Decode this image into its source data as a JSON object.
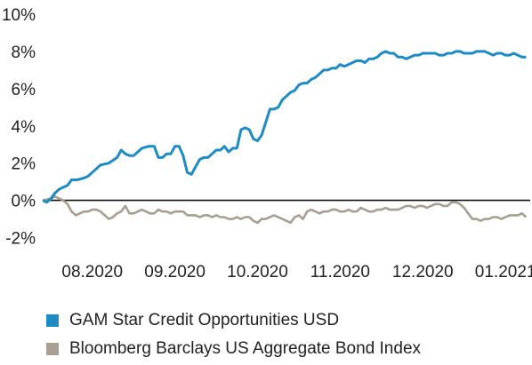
{
  "chart_data": {
    "type": "line",
    "title": "",
    "xlabel": "",
    "ylabel": "",
    "ylim": [
      -2.5,
      10
    ],
    "y_ticks": [
      -2,
      0,
      2,
      4,
      6,
      8,
      10
    ],
    "y_tick_labels": [
      "-2%",
      "0%",
      "2%",
      "4%",
      "6%",
      "8%",
      "10%"
    ],
    "x_ticks": [
      0.6,
      1.6,
      2.6,
      3.6,
      4.6,
      5.6
    ],
    "x_tick_labels": [
      "08.2020",
      "09.2020",
      "10.2020",
      "11.2020",
      "12.2020",
      "01.2021"
    ],
    "xlim": [
      0,
      5.9
    ],
    "zero_line": true,
    "grid": false,
    "legend_position": "bottom",
    "series": [
      {
        "name": "GAM Star Credit Opportunities USD",
        "color": "#1e8bc3",
        "x": [
          0.0,
          0.05,
          0.1,
          0.15,
          0.2,
          0.25,
          0.3,
          0.35,
          0.42,
          0.5,
          0.55,
          0.6,
          0.7,
          0.8,
          0.9,
          0.95,
          1.0,
          1.05,
          1.1,
          1.15,
          1.2,
          1.28,
          1.35,
          1.4,
          1.45,
          1.5,
          1.55,
          1.6,
          1.65,
          1.7,
          1.75,
          1.8,
          1.85,
          1.9,
          1.95,
          2.0,
          2.05,
          2.1,
          2.15,
          2.2,
          2.25,
          2.3,
          2.35,
          2.4,
          2.45,
          2.5,
          2.55,
          2.6,
          2.65,
          2.7,
          2.75,
          2.8,
          2.85,
          2.9,
          2.95,
          3.0,
          3.05,
          3.1,
          3.15,
          3.2,
          3.25,
          3.3,
          3.35,
          3.4,
          3.45,
          3.5,
          3.55,
          3.6,
          3.65,
          3.7,
          3.75,
          3.8,
          3.85,
          3.9,
          3.95,
          4.0,
          4.05,
          4.1,
          4.15,
          4.2,
          4.25,
          4.3,
          4.35,
          4.4,
          4.45,
          4.5,
          4.55,
          4.6,
          4.65,
          4.7,
          4.75,
          4.8,
          4.85,
          4.9,
          4.95,
          5.0,
          5.05,
          5.1,
          5.15,
          5.2,
          5.25,
          5.3,
          5.35,
          5.4,
          5.45,
          5.5,
          5.55,
          5.6,
          5.65,
          5.7,
          5.75,
          5.8,
          5.85
        ],
        "values": [
          0.0,
          -0.1,
          0.1,
          0.4,
          0.6,
          0.7,
          0.8,
          1.1,
          1.1,
          1.2,
          1.3,
          1.5,
          1.9,
          2.0,
          2.3,
          2.7,
          2.5,
          2.4,
          2.4,
          2.6,
          2.8,
          2.9,
          2.9,
          2.3,
          2.3,
          2.5,
          2.5,
          2.9,
          2.9,
          2.4,
          1.5,
          1.4,
          1.8,
          2.2,
          2.3,
          2.3,
          2.5,
          2.7,
          2.7,
          2.9,
          2.6,
          2.8,
          2.8,
          3.8,
          3.9,
          3.8,
          3.3,
          3.2,
          3.5,
          4.2,
          4.9,
          4.9,
          5.0,
          5.4,
          5.6,
          5.8,
          5.9,
          6.2,
          6.3,
          6.3,
          6.5,
          6.6,
          6.8,
          7.0,
          7.0,
          7.1,
          7.1,
          7.3,
          7.2,
          7.3,
          7.4,
          7.5,
          7.5,
          7.4,
          7.6,
          7.6,
          7.7,
          7.9,
          8.0,
          7.9,
          7.9,
          7.7,
          7.7,
          7.6,
          7.7,
          7.8,
          7.8,
          7.9,
          7.9,
          7.9,
          7.9,
          7.8,
          7.8,
          7.9,
          7.9,
          8.0,
          8.0,
          7.9,
          7.9,
          7.9,
          8.0,
          8.0,
          8.0,
          7.9,
          7.8,
          7.9,
          7.9,
          7.8,
          7.8,
          7.9,
          7.8,
          7.7,
          7.7
        ],
        "values_note": ""
      },
      {
        "name": "Bloomberg Barclays US Aggregate Bond Index",
        "color": "#a89e91",
        "x": [
          0.0,
          0.1,
          0.15,
          0.2,
          0.25,
          0.3,
          0.35,
          0.4,
          0.45,
          0.5,
          0.55,
          0.6,
          0.65,
          0.7,
          0.75,
          0.8,
          0.85,
          0.9,
          0.95,
          1.0,
          1.05,
          1.1,
          1.15,
          1.2,
          1.25,
          1.3,
          1.35,
          1.4,
          1.45,
          1.5,
          1.55,
          1.6,
          1.65,
          1.7,
          1.75,
          1.8,
          1.85,
          1.9,
          1.95,
          2.0,
          2.05,
          2.1,
          2.15,
          2.2,
          2.25,
          2.3,
          2.35,
          2.4,
          2.45,
          2.5,
          2.55,
          2.6,
          2.65,
          2.7,
          2.75,
          2.8,
          2.85,
          2.9,
          2.95,
          3.0,
          3.05,
          3.1,
          3.15,
          3.2,
          3.25,
          3.3,
          3.35,
          3.4,
          3.45,
          3.5,
          3.55,
          3.6,
          3.65,
          3.7,
          3.75,
          3.8,
          3.85,
          3.9,
          3.95,
          4.0,
          4.05,
          4.1,
          4.15,
          4.2,
          4.25,
          4.3,
          4.35,
          4.4,
          4.45,
          4.5,
          4.55,
          4.6,
          4.65,
          4.7,
          4.75,
          4.8,
          4.85,
          4.9,
          4.95,
          5.0,
          5.05,
          5.1,
          5.15,
          5.2,
          5.25,
          5.3,
          5.35,
          5.4,
          5.45,
          5.5,
          5.55,
          5.6,
          5.65,
          5.7,
          5.75,
          5.8,
          5.85
        ],
        "values": [
          0.0,
          0.1,
          0.2,
          0.1,
          0.0,
          -0.2,
          -0.6,
          -0.8,
          -0.7,
          -0.6,
          -0.6,
          -0.5,
          -0.5,
          -0.6,
          -0.8,
          -1.0,
          -0.9,
          -0.7,
          -0.6,
          -0.3,
          -0.7,
          -0.7,
          -0.6,
          -0.5,
          -0.6,
          -0.7,
          -0.7,
          -0.5,
          -0.6,
          -0.6,
          -0.7,
          -0.6,
          -0.6,
          -0.6,
          -0.8,
          -0.8,
          -0.8,
          -0.9,
          -0.8,
          -0.8,
          -0.9,
          -0.8,
          -0.9,
          -0.9,
          -1.0,
          -1.0,
          -0.9,
          -1.0,
          -0.9,
          -0.9,
          -1.1,
          -1.2,
          -1.0,
          -1.0,
          -0.9,
          -0.8,
          -0.9,
          -1.0,
          -1.1,
          -1.2,
          -0.9,
          -0.8,
          -1.0,
          -0.6,
          -0.5,
          -0.6,
          -0.7,
          -0.6,
          -0.6,
          -0.5,
          -0.5,
          -0.6,
          -0.6,
          -0.5,
          -0.6,
          -0.6,
          -0.4,
          -0.5,
          -0.6,
          -0.6,
          -0.5,
          -0.5,
          -0.4,
          -0.5,
          -0.5,
          -0.5,
          -0.4,
          -0.3,
          -0.3,
          -0.4,
          -0.3,
          -0.3,
          -0.4,
          -0.3,
          -0.2,
          -0.2,
          -0.3,
          -0.3,
          -0.1,
          -0.1,
          -0.2,
          -0.4,
          -0.7,
          -1.0,
          -1.0,
          -1.1,
          -1.0,
          -1.0,
          -0.9,
          -0.9,
          -1.0,
          -0.9,
          -0.8,
          -0.8,
          -0.8,
          -0.7,
          -0.9
        ],
        "values_note": ""
      }
    ]
  }
}
